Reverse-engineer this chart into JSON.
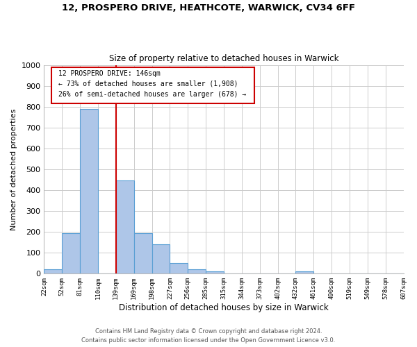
{
  "title_line1": "12, PROSPERO DRIVE, HEATHCOTE, WARWICK, CV34 6FF",
  "title_line2": "Size of property relative to detached houses in Warwick",
  "xlabel": "Distribution of detached houses by size in Warwick",
  "ylabel": "Number of detached properties",
  "bin_labels": [
    "22sqm",
    "52sqm",
    "81sqm",
    "110sqm",
    "139sqm",
    "169sqm",
    "198sqm",
    "227sqm",
    "256sqm",
    "285sqm",
    "315sqm",
    "344sqm",
    "373sqm",
    "402sqm",
    "432sqm",
    "461sqm",
    "490sqm",
    "519sqm",
    "549sqm",
    "578sqm",
    "607sqm"
  ],
  "bar_values": [
    20,
    195,
    790,
    0,
    445,
    195,
    140,
    50,
    20,
    10,
    0,
    0,
    0,
    0,
    10,
    0,
    0,
    0,
    0,
    0
  ],
  "bar_color": "#aec6e8",
  "bar_edge_color": "#5a9fd4",
  "vline_x_index": 4,
  "vline_color": "#cc0000",
  "annotation_title": "12 PROSPERO DRIVE: 146sqm",
  "annotation_line2": "← 73% of detached houses are smaller (1,908)",
  "annotation_line3": "26% of semi-detached houses are larger (678) →",
  "annotation_box_color": "#cc0000",
  "annotation_bg": "#ffffff",
  "ylim": [
    0,
    1000
  ],
  "yticks": [
    0,
    100,
    200,
    300,
    400,
    500,
    600,
    700,
    800,
    900,
    1000
  ],
  "footer_line1": "Contains HM Land Registry data © Crown copyright and database right 2024.",
  "footer_line2": "Contains public sector information licensed under the Open Government Licence v3.0.",
  "bg_color": "#ffffff",
  "grid_color": "#cccccc"
}
